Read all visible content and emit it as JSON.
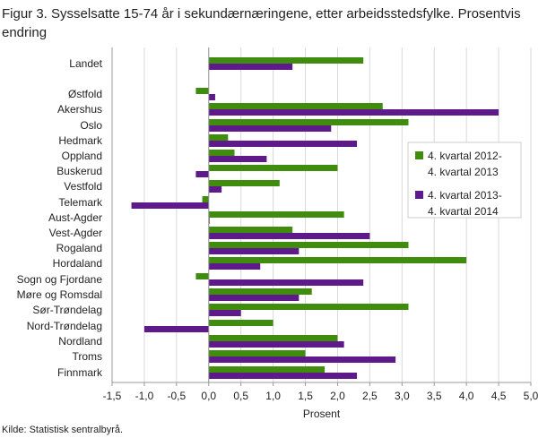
{
  "title": "Figur 3. Sysselsatte 15-74 år i sekundærnæringene, etter arbeidsstedsfylke. Prosentvis endring",
  "source": "Kilde: Statistisk sentralbyrå.",
  "colors": {
    "series1": "#3f8c0f",
    "series2": "#5e1a8a",
    "grid": "#d9d9d9",
    "axis": "#999999"
  },
  "chart_data": {
    "type": "bar",
    "orientation": "horizontal",
    "categories": [
      "Landet",
      "Østfold",
      "Akershus",
      "Oslo",
      "Hedmark",
      "Oppland",
      "Buskerud",
      "Vestfold",
      "Telemark",
      "Aust-Agder",
      "Vest-Agder",
      "Rogaland",
      "Hordaland",
      "Sogn og Fjordane",
      "Møre og Romsdal",
      "Sør-Trøndelag",
      "Nord-Trøndelag",
      "Nordland",
      "Troms",
      "Finnmark"
    ],
    "series": [
      {
        "name_lines": [
          "4. kvartal 2012-",
          "4. kvartal 2013"
        ],
        "values": [
          2.4,
          -0.2,
          2.7,
          3.1,
          0.3,
          0.4,
          2.0,
          1.1,
          -0.1,
          2.1,
          1.3,
          3.1,
          4.0,
          -0.2,
          1.6,
          3.1,
          1.0,
          2.0,
          1.5,
          1.8
        ]
      },
      {
        "name_lines": [
          "4. kvartal 2013-",
          "4. kvartal 2014"
        ],
        "values": [
          1.3,
          0.1,
          4.5,
          1.9,
          2.3,
          0.9,
          -0.2,
          0.2,
          -1.2,
          0.0,
          2.5,
          1.4,
          0.8,
          2.4,
          1.4,
          0.5,
          -1.0,
          2.1,
          2.9,
          2.3
        ]
      }
    ],
    "xlabel": "Prosent",
    "xlim": [
      -1.5,
      5.0
    ],
    "xticks": [
      "-1,5",
      "-1,0",
      "-0,5",
      "0,0",
      "0,5",
      "1,0",
      "1,5",
      "2,0",
      "2,5",
      "3,0",
      "3,5",
      "4,0",
      "4,5",
      "5,0"
    ],
    "grid": "vertical",
    "legend_position": "right"
  }
}
